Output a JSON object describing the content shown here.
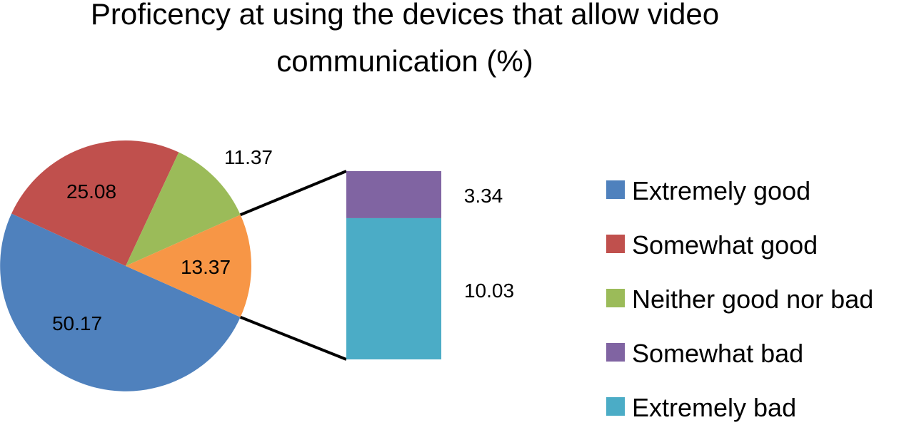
{
  "chart_data": {
    "type": "pie",
    "title_lines": [
      "Proficency at using the devices that allow video",
      "communication (%)"
    ],
    "categories": [
      "Extremely good",
      "Somewhat good",
      "Neither good nor bad",
      "Somewhat bad",
      "Extremely bad"
    ],
    "values": [
      50.17,
      25.08,
      11.37,
      3.34,
      10.03
    ],
    "colors": [
      "#4f81bd",
      "#c0504d",
      "#9bbb59",
      "#8064a2",
      "#4bacc6"
    ],
    "combined_slice": {
      "value": 13.37,
      "label": "13.37",
      "color": "#f79646"
    },
    "labels": {
      "extremely_good": "50.17",
      "somewhat_good": "25.08",
      "neither": "11.37",
      "somewhat_bad": "3.34",
      "extremely_bad": "10.03"
    },
    "legend": [
      {
        "label": "Extremely good",
        "color": "#4f81bd"
      },
      {
        "label": "Somewhat good",
        "color": "#c0504d"
      },
      {
        "label": "Neither good nor bad",
        "color": "#9bbb59"
      },
      {
        "label": "Somewhat bad",
        "color": "#8064a2"
      },
      {
        "label": "Extremely bad",
        "color": "#4bacc6"
      }
    ],
    "legend_position": "right",
    "grid": false
  }
}
